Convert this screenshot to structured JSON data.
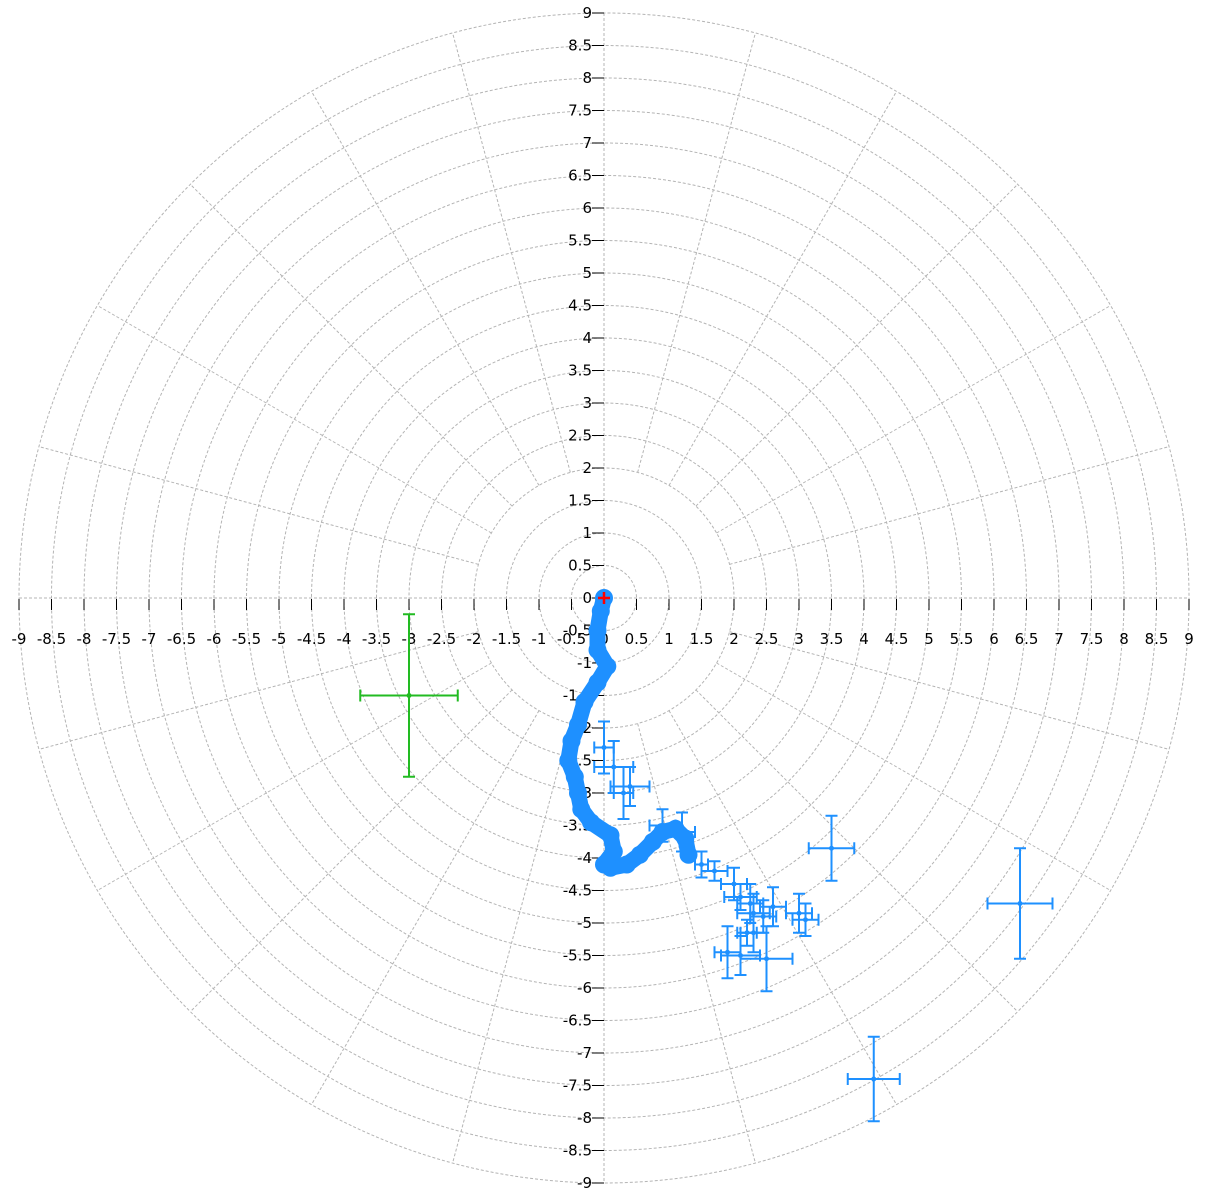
{
  "chart_data": {
    "type": "scatter",
    "title": "",
    "xlabel": "",
    "ylabel": "",
    "xlim": [
      -9,
      9
    ],
    "ylim": [
      -9,
      9
    ],
    "tick_step": 0.5,
    "grid": true,
    "polar_grid": {
      "ring_step": 0.5,
      "ray_count": 24
    },
    "x_tick_labels": [
      "-9",
      "-8.5",
      "-8",
      "-7.5",
      "-7",
      "-6.5",
      "-6",
      "-5.5",
      "-5",
      "-4.5",
      "-4",
      "-3.5",
      "-3",
      "-2.5",
      "-2",
      "-1.5",
      "-1",
      "-0.5",
      "0",
      "0.5",
      "1",
      "1.5",
      "2",
      "2.5",
      "3",
      "3.5",
      "4",
      "4.5",
      "5",
      "5.5",
      "6",
      "6.5",
      "7",
      "7.5",
      "8",
      "8.5",
      "9"
    ],
    "y_tick_labels": [
      "9",
      "8.5",
      "8",
      "7.5",
      "7",
      "6.5",
      "6",
      "5.5",
      "5",
      "4.5",
      "4",
      "3.5",
      "3",
      "2.5",
      "2",
      "1.5",
      "1",
      "0.5",
      "0",
      "-0.5",
      "-1",
      "-1.5",
      "-2",
      "-2.5",
      "-3",
      "-3.5",
      "-4",
      "-4.5",
      "-5",
      "-5.5",
      "-6",
      "-6.5",
      "-7",
      "-7.5",
      "-8",
      "-8.5",
      "-9"
    ],
    "series": [
      {
        "color": "#1e90ff",
        "style": "thick-track",
        "points": [
          {
            "x": 0.0,
            "y": 0.0
          },
          {
            "x": -0.05,
            "y": -0.2
          },
          {
            "x": -0.1,
            "y": -0.5
          },
          {
            "x": -0.1,
            "y": -0.8
          },
          {
            "x": 0.05,
            "y": -1.05
          },
          {
            "x": -0.1,
            "y": -1.3
          },
          {
            "x": -0.3,
            "y": -1.6
          },
          {
            "x": -0.4,
            "y": -1.95
          },
          {
            "x": -0.5,
            "y": -2.2
          },
          {
            "x": -0.55,
            "y": -2.5
          },
          {
            "x": -0.45,
            "y": -2.75
          },
          {
            "x": -0.4,
            "y": -3.0
          },
          {
            "x": -0.35,
            "y": -3.25
          },
          {
            "x": -0.2,
            "y": -3.45
          },
          {
            "x": 0.1,
            "y": -3.65
          },
          {
            "x": 0.15,
            "y": -3.9
          },
          {
            "x": 0.0,
            "y": -4.1
          },
          {
            "x": 0.1,
            "y": -4.15
          },
          {
            "x": 0.35,
            "y": -4.1
          },
          {
            "x": 0.55,
            "y": -3.95
          },
          {
            "x": 0.75,
            "y": -3.75
          },
          {
            "x": 0.9,
            "y": -3.6
          },
          {
            "x": 1.1,
            "y": -3.55
          },
          {
            "x": 1.25,
            "y": -3.7
          },
          {
            "x": 1.3,
            "y": -3.95
          }
        ]
      },
      {
        "color": "#1e90ff",
        "style": "error-cross",
        "points": [
          {
            "x": 0.0,
            "y": -2.3,
            "xerr": 0.15,
            "yerr": 0.4
          },
          {
            "x": 0.15,
            "y": -2.6,
            "xerr": 0.3,
            "yerr": 0.4
          },
          {
            "x": 0.4,
            "y": -2.9,
            "xerr": 0.3,
            "yerr": 0.3
          },
          {
            "x": 0.3,
            "y": -3.0,
            "xerr": 0.15,
            "yerr": 0.4
          },
          {
            "x": 0.9,
            "y": -3.5,
            "xerr": 0.2,
            "yerr": 0.25
          },
          {
            "x": 1.2,
            "y": -3.6,
            "xerr": 0.2,
            "yerr": 0.3
          },
          {
            "x": 1.5,
            "y": -4.1,
            "xerr": 0.1,
            "yerr": 0.2
          },
          {
            "x": 1.7,
            "y": -4.2,
            "xerr": 0.2,
            "yerr": 0.15
          },
          {
            "x": 2.0,
            "y": -4.4,
            "xerr": 0.2,
            "yerr": 0.25
          },
          {
            "x": 2.1,
            "y": -4.6,
            "xerr": 0.25,
            "yerr": 0.2
          },
          {
            "x": 2.25,
            "y": -4.7,
            "xerr": 0.2,
            "yerr": 0.3
          },
          {
            "x": 2.3,
            "y": -4.85,
            "xerr": 0.25,
            "yerr": 0.3
          },
          {
            "x": 2.45,
            "y": -4.9,
            "xerr": 0.2,
            "yerr": 0.25
          },
          {
            "x": 2.6,
            "y": -4.75,
            "xerr": 0.2,
            "yerr": 0.3
          },
          {
            "x": 2.2,
            "y": -5.15,
            "xerr": 0.15,
            "yerr": 0.2
          },
          {
            "x": 3.0,
            "y": -4.85,
            "xerr": 0.2,
            "yerr": 0.3
          },
          {
            "x": 3.1,
            "y": -4.95,
            "xerr": 0.2,
            "yerr": 0.25
          },
          {
            "x": 2.3,
            "y": -5.15,
            "xerr": 0.2,
            "yerr": 0.3
          },
          {
            "x": 1.9,
            "y": -5.45,
            "xerr": 0.2,
            "yerr": 0.4
          },
          {
            "x": 2.1,
            "y": -5.5,
            "xerr": 0.3,
            "yerr": 0.3
          },
          {
            "x": 2.5,
            "y": -5.55,
            "xerr": 0.4,
            "yerr": 0.5
          },
          {
            "x": 3.5,
            "y": -3.85,
            "xerr": 0.35,
            "yerr": 0.5
          },
          {
            "x": 6.4,
            "y": -4.7,
            "xerr": 0.5,
            "yerr": 0.85
          },
          {
            "x": 4.15,
            "y": -7.4,
            "xerr": 0.4,
            "yerr": 0.65
          }
        ]
      },
      {
        "color": "#22bb22",
        "style": "error-cross",
        "points": [
          {
            "x": -3.0,
            "y": -1.5,
            "xerr": 0.75,
            "yerr": 1.25
          }
        ]
      },
      {
        "color": "#ff0000",
        "style": "marker",
        "points": [
          {
            "x": 0.0,
            "y": 0.0
          }
        ]
      }
    ]
  }
}
